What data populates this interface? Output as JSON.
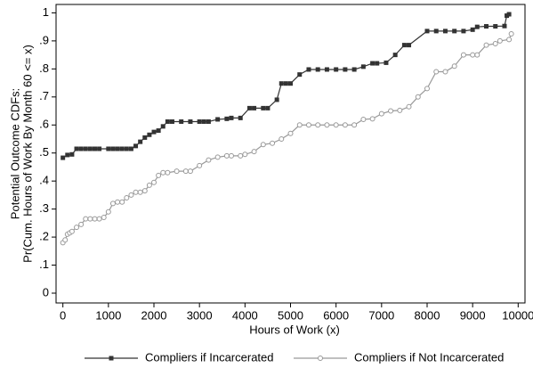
{
  "chart_data": {
    "type": "line",
    "xlabel": "Hours of Work (x)",
    "ylabel": [
      "Potential Outcome CDFs:",
      "Pr(Cum. Hours of Work By Month 60 <= x)"
    ],
    "xlim": [
      -150,
      10150
    ],
    "ylim": [
      -0.035,
      1.03
    ],
    "xticks": [
      0,
      1000,
      2000,
      3000,
      4000,
      5000,
      6000,
      7000,
      8000,
      9000,
      10000
    ],
    "yticks": [
      0,
      {
        "value": 0.1,
        "label": ".1"
      },
      {
        "value": 0.2,
        "label": ".2"
      },
      {
        "value": 0.3,
        "label": ".3"
      },
      {
        "value": 0.4,
        "label": ".4"
      },
      {
        "value": 0.5,
        "label": ".5"
      },
      {
        "value": 0.6,
        "label": ".6"
      },
      {
        "value": 0.7,
        "label": ".7"
      },
      {
        "value": 0.8,
        "label": ".8"
      },
      {
        "value": 0.9,
        "label": ".9"
      },
      1
    ],
    "grid": false,
    "legend": "bottom",
    "series": [
      {
        "name": "Compliers if Incarcerated",
        "color": "#333333",
        "marker": "square",
        "x": [
          0,
          100,
          200,
          300,
          400,
          500,
          600,
          700,
          800,
          1000,
          1100,
          1200,
          1300,
          1400,
          1500,
          1600,
          1700,
          1800,
          1900,
          2000,
          2100,
          2200,
          2300,
          2400,
          2600,
          2800,
          3000,
          3100,
          3200,
          3400,
          3600,
          3700,
          3900,
          4100,
          4200,
          4400,
          4500,
          4700,
          4800,
          4900,
          5000,
          5200,
          5400,
          5600,
          5800,
          6000,
          6200,
          6400,
          6600,
          6800,
          6900,
          7100,
          7300,
          7500,
          7600,
          8000,
          8200,
          8400,
          8600,
          8800,
          9000,
          9100,
          9300,
          9500,
          9700,
          9750,
          9800
        ],
        "values": [
          0.483,
          0.493,
          0.495,
          0.515,
          0.515,
          0.515,
          0.515,
          0.515,
          0.515,
          0.515,
          0.515,
          0.515,
          0.515,
          0.515,
          0.515,
          0.525,
          0.54,
          0.555,
          0.565,
          0.575,
          0.58,
          0.595,
          0.612,
          0.612,
          0.612,
          0.612,
          0.612,
          0.612,
          0.612,
          0.62,
          0.622,
          0.625,
          0.625,
          0.66,
          0.66,
          0.66,
          0.66,
          0.69,
          0.748,
          0.748,
          0.748,
          0.78,
          0.798,
          0.798,
          0.798,
          0.798,
          0.798,
          0.798,
          0.808,
          0.82,
          0.82,
          0.822,
          0.85,
          0.885,
          0.885,
          0.935,
          0.935,
          0.935,
          0.935,
          0.935,
          0.94,
          0.95,
          0.952,
          0.952,
          0.953,
          0.99,
          0.995
        ]
      },
      {
        "name": "Compliers if Not Incarcerated",
        "color": "#999999",
        "marker": "circle",
        "x": [
          0,
          50,
          100,
          150,
          200,
          300,
          400,
          500,
          600,
          700,
          800,
          900,
          1000,
          1100,
          1200,
          1300,
          1400,
          1500,
          1600,
          1700,
          1800,
          1900,
          2000,
          2100,
          2200,
          2300,
          2500,
          2700,
          2800,
          3000,
          3200,
          3400,
          3600,
          3700,
          3900,
          4000,
          4200,
          4400,
          4600,
          4800,
          5000,
          5200,
          5400,
          5600,
          5800,
          6000,
          6200,
          6400,
          6600,
          6800,
          7000,
          7200,
          7400,
          7600,
          7800,
          8000,
          8200,
          8400,
          8600,
          8800,
          9000,
          9100,
          9300,
          9500,
          9600,
          9800,
          9850
        ],
        "values": [
          0.18,
          0.19,
          0.21,
          0.215,
          0.22,
          0.235,
          0.245,
          0.265,
          0.265,
          0.265,
          0.265,
          0.27,
          0.29,
          0.32,
          0.325,
          0.325,
          0.34,
          0.35,
          0.36,
          0.36,
          0.365,
          0.385,
          0.395,
          0.42,
          0.43,
          0.43,
          0.435,
          0.435,
          0.435,
          0.455,
          0.475,
          0.485,
          0.49,
          0.49,
          0.49,
          0.495,
          0.505,
          0.53,
          0.535,
          0.55,
          0.57,
          0.6,
          0.6,
          0.6,
          0.6,
          0.6,
          0.6,
          0.6,
          0.62,
          0.622,
          0.64,
          0.65,
          0.652,
          0.665,
          0.7,
          0.73,
          0.79,
          0.79,
          0.81,
          0.85,
          0.85,
          0.85,
          0.885,
          0.89,
          0.9,
          0.905,
          0.925
        ]
      }
    ]
  }
}
